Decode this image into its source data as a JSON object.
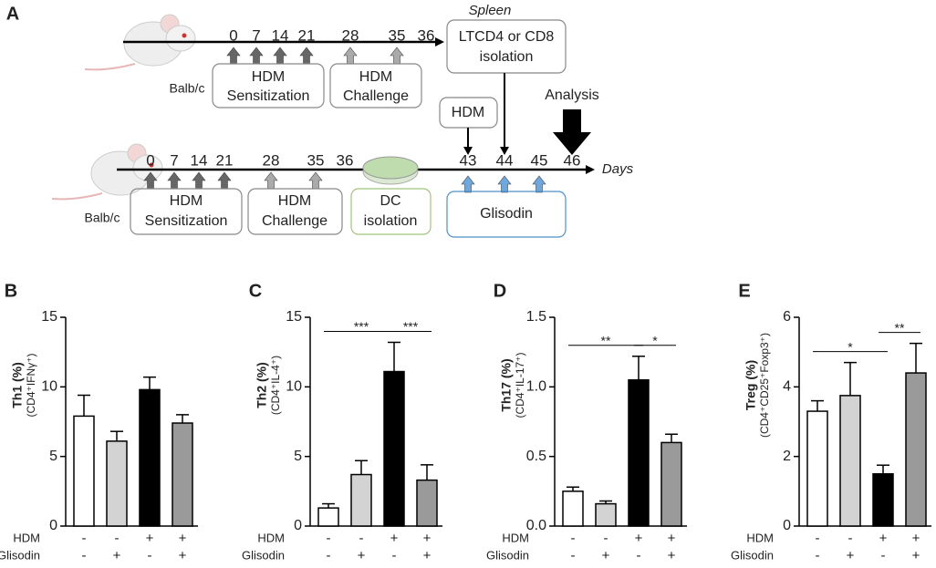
{
  "diagram": {
    "label": "A",
    "top": {
      "strain": "Balb/c",
      "days": [
        0,
        7,
        14,
        21,
        28,
        35,
        36
      ],
      "sensitization": [
        "HDM",
        "Sensitization"
      ],
      "challenge": [
        "HDM",
        "Challenge"
      ],
      "spleen": "Spleen",
      "isolation": [
        "LTCD4 or CD8",
        "isolation"
      ]
    },
    "bottom": {
      "strain": "Balb/c",
      "days": [
        0,
        7,
        14,
        21,
        28,
        35,
        36,
        43,
        44,
        45,
        46
      ],
      "days_label": "Days",
      "sensitization": [
        "HDM",
        "Sensitization"
      ],
      "challenge": [
        "HDM",
        "Challenge"
      ],
      "dc": [
        "DC",
        "isolation"
      ],
      "glisodin": "Glisodin",
      "hdm": "HDM",
      "analysis": "Analysis"
    }
  },
  "chart_data": [
    {
      "type": "bar",
      "label": "B",
      "ylabel": "Th1 (%)",
      "ylabel_sub": "(CD4⁺IFNγ⁺)",
      "ylim": [
        0,
        15
      ],
      "yticks": [
        0,
        5,
        10,
        15
      ],
      "values": [
        7.9,
        6.1,
        9.8,
        7.4
      ],
      "errors": [
        1.5,
        0.7,
        0.9,
        0.6
      ],
      "colors": [
        "#ffffff",
        "#d3d3d3",
        "#000000",
        "#9a9a9a"
      ],
      "rows": [
        {
          "name": "HDM",
          "signs": [
            "-",
            "-",
            "+",
            "+"
          ]
        },
        {
          "name": "Glisodin",
          "signs": [
            "-",
            "+",
            "-",
            "+"
          ]
        }
      ],
      "significance": []
    },
    {
      "type": "bar",
      "label": "C",
      "ylabel": "Th2 (%)",
      "ylabel_sub": "(CD4⁺IL-4⁺)",
      "ylim": [
        0,
        15
      ],
      "yticks": [
        0,
        5,
        10,
        15
      ],
      "values": [
        1.3,
        3.7,
        11.1,
        3.3
      ],
      "errors": [
        0.3,
        1.0,
        2.1,
        1.1
      ],
      "colors": [
        "#ffffff",
        "#d3d3d3",
        "#000000",
        "#9a9a9a"
      ],
      "rows": [
        {
          "name": "HDM",
          "signs": [
            "-",
            "-",
            "+",
            "+"
          ]
        },
        {
          "name": "Glisodin",
          "signs": [
            "-",
            "+",
            "-",
            "+"
          ]
        }
      ],
      "significance": [
        "***",
        "***"
      ]
    },
    {
      "type": "bar",
      "label": "D",
      "ylabel": "Th17 (%)",
      "ylabel_sub": "(CD4⁺IL-17⁺)",
      "ylim": [
        0,
        1.5
      ],
      "yticks": [
        {
          "value": 0,
          "label": "0.0"
        },
        0.5,
        {
          "value": 1,
          "label": "1.0"
        },
        1.5
      ],
      "values": [
        0.25,
        0.16,
        1.05,
        0.6
      ],
      "errors": [
        0.03,
        0.02,
        0.17,
        0.06
      ],
      "colors": [
        "#ffffff",
        "#d3d3d3",
        "#000000",
        "#9a9a9a"
      ],
      "rows": [
        {
          "name": "HDM",
          "signs": [
            "-",
            "-",
            "+",
            "+"
          ]
        },
        {
          "name": "Glisodin",
          "signs": [
            "-",
            "+",
            "-",
            "+"
          ]
        }
      ],
      "significance": [
        "**",
        "*"
      ]
    },
    {
      "type": "bar",
      "label": "E",
      "ylabel": "Treg (%)",
      "ylabel_sub": "(CD4⁺CD25⁺Foxp3⁺)",
      "ylim": [
        0,
        6
      ],
      "yticks": [
        0,
        2,
        4,
        6
      ],
      "values": [
        3.3,
        3.75,
        1.5,
        4.4
      ],
      "errors": [
        0.3,
        0.95,
        0.25,
        0.85
      ],
      "colors": [
        "#ffffff",
        "#d3d3d3",
        "#000000",
        "#9a9a9a"
      ],
      "rows": [
        {
          "name": "HDM",
          "signs": [
            "-",
            "-",
            "+",
            "+"
          ]
        },
        {
          "name": "Glisodin",
          "signs": [
            "-",
            "+",
            "-",
            "+"
          ]
        }
      ],
      "significance": [
        "*",
        "**"
      ]
    }
  ]
}
